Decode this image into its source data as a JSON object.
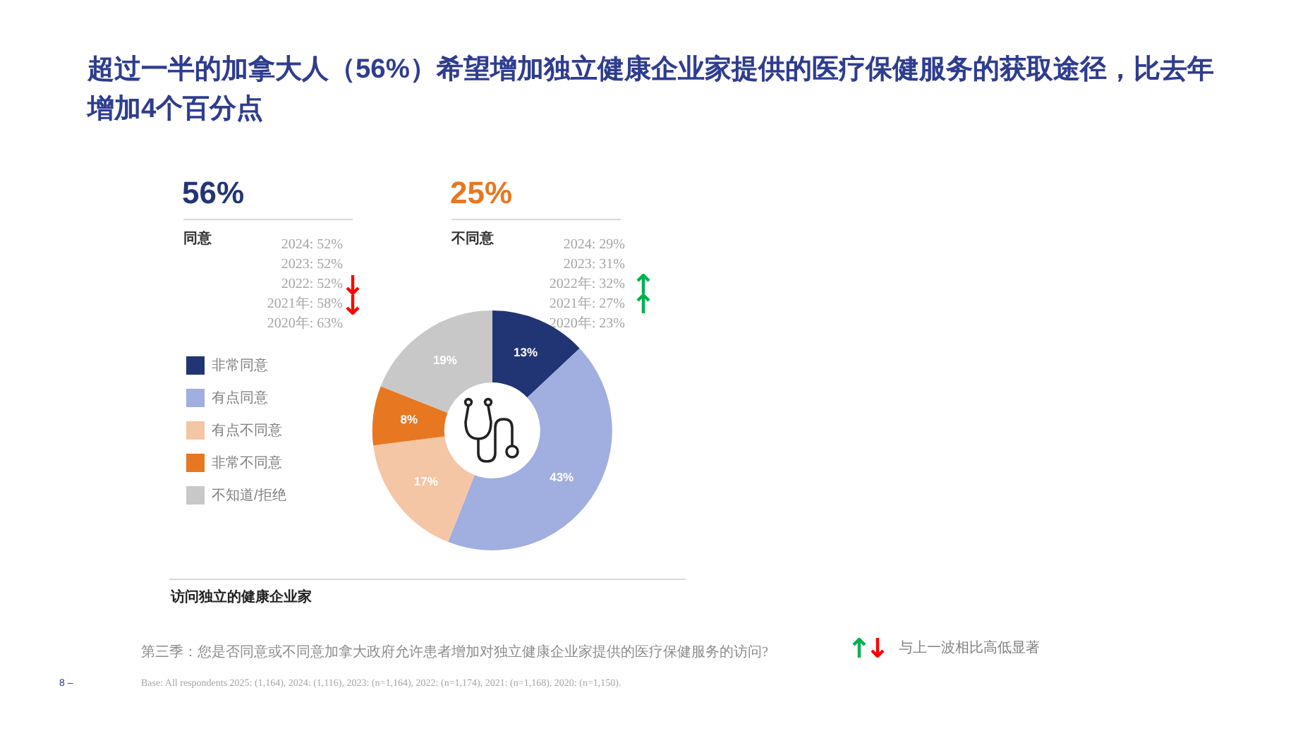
{
  "chart_data": {
    "type": "donut",
    "title": "超过一半的加拿大人（56%）希望增加独立健康企业家提供的医疗保健服务的获取途径，比去年增加4个百分点",
    "categories": [
      "非常同意",
      "有点同意",
      "有点不同意",
      "非常不同意",
      "不知道/拒绝"
    ],
    "values": [
      13,
      43,
      17,
      8,
      19
    ],
    "colors": [
      "#213574",
      "#a0aee0",
      "#f5c6a5",
      "#e87722",
      "#c8c8c8"
    ],
    "value_labels": [
      "13%",
      "43%",
      "17%",
      "8%",
      "19%"
    ],
    "legend": "left",
    "annotations": [
      "56%",
      "同意",
      "2024: 52%",
      "2023: 52%",
      "2022: 52%",
      "2021年: 58%",
      "2020年: 63%",
      "25%",
      "不同意",
      "2024: 29%",
      "2023: 31%",
      "2022年: 32%",
      "2021年: 27%",
      "2020年: 23%",
      "访问独立的健康企业家",
      "第三季：您是否同意或不同意加拿大政府允许患者增加对独立健康企业家提供的医疗保健服务的访问?",
      "Base: All respondents 2025: (1,164), 2024: (1,116), 2023: (n=1,164), 2022: (n=1,174), 2021: (n=1,168), 2020: (n=1,150).",
      "与上一波相比高低显著",
      "8 –"
    ]
  }
}
